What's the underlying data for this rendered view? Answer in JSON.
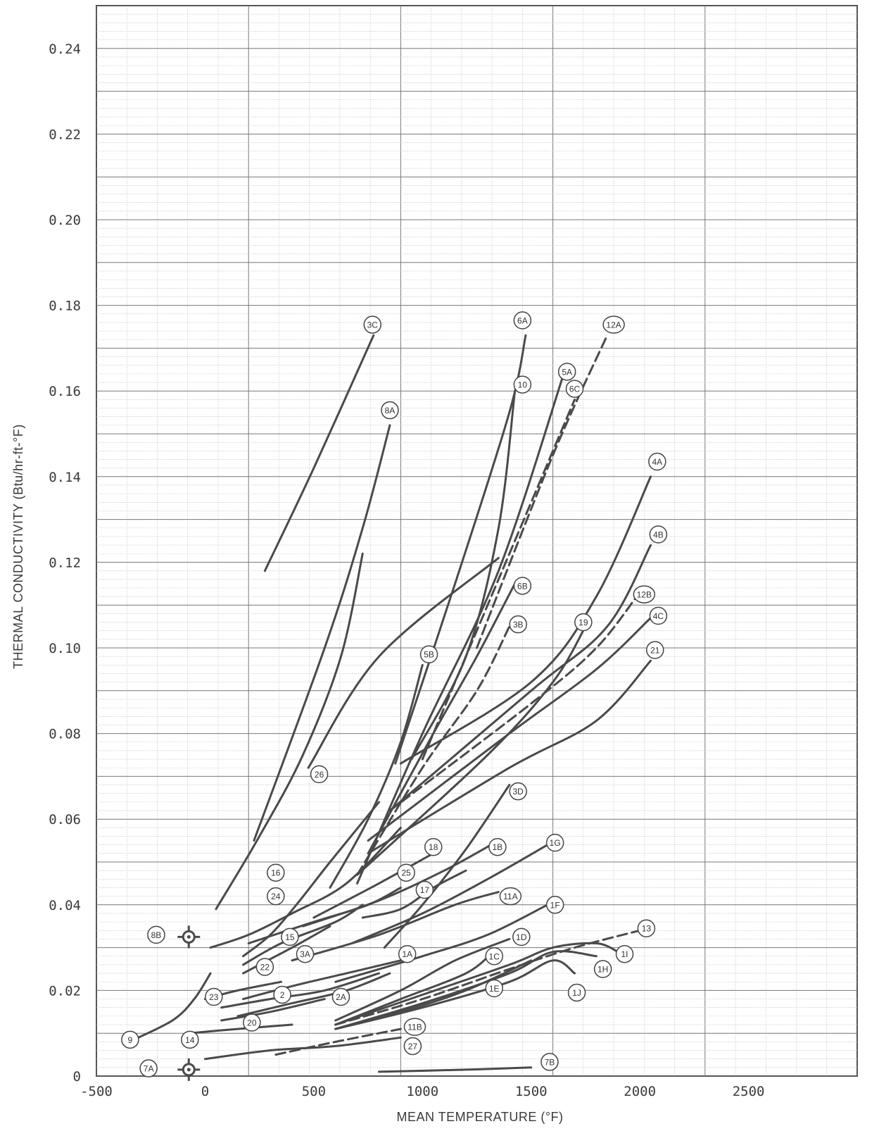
{
  "chart_data": {
    "type": "line",
    "title": "",
    "xlabel": "MEAN TEMPERATURE (°F)",
    "ylabel": "THERMAL CONDUCTIVITY (Btu/hr-ft-°F)",
    "xlim": [
      -500,
      3000
    ],
    "ylim": [
      0,
      0.25
    ],
    "x_ticks": [
      -500,
      0,
      500,
      1000,
      1500,
      2000,
      2500
    ],
    "x_tick_labels": [
      "-500",
      "0",
      "500",
      "1000",
      "1500",
      "2000",
      "2500"
    ],
    "y_ticks": [
      0,
      0.02,
      0.04,
      0.06,
      0.08,
      0.1,
      0.12,
      0.14,
      0.16,
      0.18,
      0.2,
      0.22,
      0.24
    ],
    "y_tick_labels": [
      "0",
      "0.02",
      "0.04",
      "0.06",
      "0.08",
      "0.10",
      "0.12",
      "0.14",
      "0.16",
      "0.18",
      "0.20",
      "0.22",
      "0.24"
    ],
    "grid": true,
    "line_color": "#4a4a4a",
    "series": [
      {
        "name": "3C",
        "points": [
          [
            275,
            0.118
          ],
          [
            500,
            0.142
          ],
          [
            775,
            0.173
          ]
        ],
        "label_at": [
          770,
          0.1755
        ]
      },
      {
        "name": "8A",
        "points": [
          [
            225,
            0.055
          ],
          [
            550,
            0.1
          ],
          [
            725,
            0.128
          ],
          [
            850,
            0.152
          ]
        ],
        "label_at": [
          850,
          0.1555
        ]
      },
      {
        "name": "26",
        "points": [
          [
            475,
            0.072
          ],
          [
            800,
            0.098
          ],
          [
            1350,
            0.121
          ]
        ],
        "label_at": [
          525,
          0.0705
        ]
      },
      {
        "name": "6A",
        "points": [
          [
            875,
            0.073
          ],
          [
            1150,
            0.115
          ],
          [
            1400,
            0.155
          ],
          [
            1475,
            0.173
          ]
        ],
        "label_at": [
          1460,
          0.1765
        ]
      },
      {
        "name": "10",
        "points": [
          [
            950,
            0.074
          ],
          [
            1200,
            0.098
          ],
          [
            1350,
            0.128
          ],
          [
            1425,
            0.16
          ]
        ],
        "label_at": [
          1460,
          0.1615
        ]
      },
      {
        "name": "5A",
        "points": [
          [
            700,
            0.045
          ],
          [
            1000,
            0.08
          ],
          [
            1350,
            0.118
          ],
          [
            1650,
            0.164
          ]
        ],
        "label_at": [
          1665,
          0.1645
        ]
      },
      {
        "name": "6C",
        "points": [
          [
            1000,
            0.074
          ],
          [
            1300,
            0.11
          ],
          [
            1550,
            0.14
          ],
          [
            1700,
            0.158
          ]
        ],
        "label_at": [
          1700,
          0.1605
        ],
        "dashed": true
      },
      {
        "name": "12A",
        "points": [
          [
            1250,
            0.1
          ],
          [
            1600,
            0.145
          ],
          [
            1850,
            0.173
          ]
        ],
        "label_at": [
          1880,
          0.1755
        ],
        "dashed": true
      },
      {
        "name": "4A",
        "points": [
          [
            900,
            0.073
          ],
          [
            1500,
            0.092
          ],
          [
            1800,
            0.112
          ],
          [
            2050,
            0.14
          ]
        ],
        "label_at": [
          2080,
          0.1435
        ]
      },
      {
        "name": "4B",
        "points": [
          [
            850,
            0.062
          ],
          [
            1500,
            0.09
          ],
          [
            1850,
            0.105
          ],
          [
            2050,
            0.124
          ]
        ],
        "label_at": [
          2085,
          0.1265
        ]
      },
      {
        "name": "12B",
        "points": [
          [
            850,
            0.062
          ],
          [
            1500,
            0.087
          ],
          [
            1800,
            0.1
          ],
          [
            2000,
            0.113
          ]
        ],
        "label_at": [
          2020,
          0.1125
        ],
        "dashed": true
      },
      {
        "name": "4C",
        "points": [
          [
            750,
            0.055
          ],
          [
            1400,
            0.08
          ],
          [
            1800,
            0.095
          ],
          [
            2050,
            0.107
          ]
        ],
        "label_at": [
          2085,
          0.1075
        ]
      },
      {
        "name": "21",
        "points": [
          [
            750,
            0.052
          ],
          [
            1400,
            0.072
          ],
          [
            1800,
            0.083
          ],
          [
            2050,
            0.097
          ]
        ],
        "label_at": [
          2070,
          0.0995
        ]
      },
      {
        "name": "19",
        "points": [
          [
            700,
            0.047
          ],
          [
            1300,
            0.075
          ],
          [
            1600,
            0.092
          ],
          [
            1750,
            0.105
          ]
        ],
        "label_at": [
          1740,
          0.106
        ]
      },
      {
        "name": "6B",
        "points": [
          [
            750,
            0.052
          ],
          [
            1050,
            0.08
          ],
          [
            1250,
            0.098
          ],
          [
            1425,
            0.115
          ]
        ],
        "label_at": [
          1460,
          0.1145
        ]
      },
      {
        "name": "3B",
        "points": [
          [
            700,
            0.047
          ],
          [
            1000,
            0.072
          ],
          [
            1250,
            0.09
          ],
          [
            1400,
            0.105
          ]
        ],
        "label_at": [
          1440,
          0.1055
        ],
        "dashed": true
      },
      {
        "name": "5B",
        "points": [
          [
            575,
            0.044
          ],
          [
            750,
            0.06
          ],
          [
            900,
            0.078
          ],
          [
            1000,
            0.096
          ]
        ],
        "label_at": [
          1030,
          0.0985
        ]
      },
      {
        "name": "3D",
        "points": [
          [
            825,
            0.03
          ],
          [
            1000,
            0.04
          ],
          [
            1200,
            0.053
          ],
          [
            1400,
            0.068
          ]
        ],
        "label_at": [
          1440,
          0.0665
        ]
      },
      {
        "name": "16",
        "points": [
          [
            50,
            0.039
          ],
          [
            250,
            0.056
          ],
          [
            450,
            0.075
          ],
          [
            625,
            0.098
          ],
          [
            725,
            0.122
          ]
        ],
        "label_at": [
          325,
          0.0475
        ]
      },
      {
        "name": "24",
        "points": [
          [
            25,
            0.03
          ],
          [
            200,
            0.033
          ],
          [
            400,
            0.038
          ],
          [
            650,
            0.045
          ],
          [
            900,
            0.058
          ]
        ],
        "label_at": [
          325,
          0.042
        ]
      },
      {
        "name": "18",
        "points": [
          [
            500,
            0.037
          ],
          [
            800,
            0.045
          ],
          [
            1050,
            0.052
          ]
        ],
        "label_at": [
          1050,
          0.0535
        ]
      },
      {
        "name": "25",
        "points": [
          [
            200,
            0.031
          ],
          [
            500,
            0.036
          ],
          [
            750,
            0.04
          ],
          [
            900,
            0.044
          ]
        ],
        "label_at": [
          925,
          0.0475
        ]
      },
      {
        "name": "1B",
        "points": [
          [
            450,
            0.035
          ],
          [
            800,
            0.041
          ],
          [
            1100,
            0.048
          ],
          [
            1350,
            0.055
          ]
        ],
        "label_at": [
          1345,
          0.0535
        ]
      },
      {
        "name": "17",
        "points": [
          [
            725,
            0.037
          ],
          [
            900,
            0.039
          ],
          [
            1050,
            0.044
          ],
          [
            1200,
            0.048
          ]
        ],
        "label_at": [
          1010,
          0.0435
        ]
      },
      {
        "name": "1G",
        "points": [
          [
            675,
            0.031
          ],
          [
            1000,
            0.038
          ],
          [
            1300,
            0.046
          ],
          [
            1575,
            0.054
          ]
        ],
        "label_at": [
          1610,
          0.0545
        ]
      },
      {
        "name": "11A",
        "points": [
          [
            400,
            0.027
          ],
          [
            800,
            0.033
          ],
          [
            1150,
            0.04
          ],
          [
            1350,
            0.043
          ]
        ],
        "label_at": [
          1405,
          0.042
        ]
      },
      {
        "name": "1F",
        "points": [
          [
            600,
            0.022
          ],
          [
            1000,
            0.028
          ],
          [
            1300,
            0.033
          ],
          [
            1575,
            0.04
          ]
        ],
        "label_at": [
          1610,
          0.04
        ]
      },
      {
        "name": "15",
        "points": [
          [
            175,
            0.026
          ],
          [
            350,
            0.031
          ],
          [
            600,
            0.036
          ],
          [
            725,
            0.04
          ]
        ],
        "label_at": [
          390,
          0.0325
        ]
      },
      {
        "name": "3A",
        "points": [
          [
            175,
            0.028
          ],
          [
            300,
            0.033
          ],
          [
            420,
            0.04
          ],
          [
            575,
            0.05
          ],
          [
            800,
            0.064
          ]
        ],
        "label_at": [
          460,
          0.0285
        ]
      },
      {
        "name": "22",
        "points": [
          [
            175,
            0.024
          ],
          [
            250,
            0.026
          ],
          [
            400,
            0.03
          ],
          [
            575,
            0.035
          ]
        ],
        "label_at": [
          275,
          0.0255
        ]
      },
      {
        "name": "1A",
        "points": [
          [
            175,
            0.018
          ],
          [
            400,
            0.021
          ],
          [
            650,
            0.024
          ],
          [
            900,
            0.027
          ]
        ],
        "label_at": [
          930,
          0.0285
        ]
      },
      {
        "name": "1D",
        "points": [
          [
            600,
            0.013
          ],
          [
            900,
            0.02
          ],
          [
            1150,
            0.027
          ],
          [
            1400,
            0.032
          ]
        ],
        "label_at": [
          1455,
          0.0325
        ]
      },
      {
        "name": "1C",
        "points": [
          [
            600,
            0.012
          ],
          [
            900,
            0.018
          ],
          [
            1200,
            0.024
          ],
          [
            1325,
            0.029
          ]
        ],
        "label_at": [
          1330,
          0.028
        ]
      },
      {
        "name": "1E",
        "points": [
          [
            600,
            0.011
          ],
          [
            900,
            0.015
          ],
          [
            1200,
            0.02
          ],
          [
            1500,
            0.027
          ]
        ],
        "label_at": [
          1330,
          0.0205
        ]
      },
      {
        "name": "13",
        "points": [
          [
            600,
            0.012
          ],
          [
            1000,
            0.018
          ],
          [
            1400,
            0.025
          ],
          [
            1700,
            0.03
          ],
          [
            2000,
            0.034
          ]
        ],
        "label_at": [
          2030,
          0.0345
        ],
        "dashed": true
      },
      {
        "name": "1I",
        "points": [
          [
            600,
            0.012
          ],
          [
            1000,
            0.019
          ],
          [
            1400,
            0.026
          ],
          [
            1600,
            0.03
          ],
          [
            1800,
            0.031
          ],
          [
            1900,
            0.029
          ]
        ],
        "label_at": [
          1930,
          0.0285
        ]
      },
      {
        "name": "1H",
        "points": [
          [
            600,
            0.011
          ],
          [
            1000,
            0.017
          ],
          [
            1400,
            0.024
          ],
          [
            1600,
            0.029
          ],
          [
            1800,
            0.028
          ]
        ],
        "label_at": [
          1830,
          0.025
        ]
      },
      {
        "name": "1J",
        "points": [
          [
            600,
            0.011
          ],
          [
            1000,
            0.016
          ],
          [
            1400,
            0.022
          ],
          [
            1600,
            0.027
          ],
          [
            1700,
            0.024
          ]
        ],
        "label_at": [
          1710,
          0.0195
        ]
      },
      {
        "name": "2",
        "points": [
          [
            75,
            0.016
          ],
          [
            300,
            0.018
          ],
          [
            550,
            0.02
          ],
          [
            800,
            0.024
          ]
        ],
        "label_at": [
          355,
          0.019
        ]
      },
      {
        "name": "2A",
        "points": [
          [
            150,
            0.014
          ],
          [
            400,
            0.017
          ],
          [
            650,
            0.02
          ],
          [
            850,
            0.024
          ]
        ],
        "label_at": [
          625,
          0.0185
        ]
      },
      {
        "name": "23",
        "points": [
          [
            0,
            0.018
          ],
          [
            150,
            0.02
          ],
          [
            350,
            0.022
          ]
        ],
        "label_at": [
          40,
          0.0185
        ]
      },
      {
        "name": "20",
        "points": [
          [
            75,
            0.013
          ],
          [
            300,
            0.015
          ],
          [
            550,
            0.018
          ]
        ],
        "label_at": [
          215,
          0.0125
        ]
      },
      {
        "name": "9",
        "points": [
          [
            -350,
            0.008
          ],
          [
            -150,
            0.013
          ],
          [
            -50,
            0.018
          ],
          [
            25,
            0.024
          ]
        ],
        "label_at": [
          -345,
          0.0085
        ]
      },
      {
        "name": "14",
        "points": [
          [
            -75,
            0.01
          ],
          [
            150,
            0.011
          ],
          [
            400,
            0.012
          ]
        ],
        "label_at": [
          -70,
          0.0085
        ]
      },
      {
        "name": "11B",
        "points": [
          [
            325,
            0.005
          ],
          [
            600,
            0.008
          ],
          [
            900,
            0.011
          ]
        ],
        "label_at": [
          965,
          0.0115
        ],
        "dashed": true
      },
      {
        "name": "27",
        "points": [
          [
            0,
            0.004
          ],
          [
            300,
            0.006
          ],
          [
            600,
            0.007
          ],
          [
            900,
            0.009
          ]
        ],
        "label_at": [
          955,
          0.007
        ]
      },
      {
        "name": "7B",
        "points": [
          [
            800,
            0.001
          ],
          [
            1200,
            0.0015
          ],
          [
            1500,
            0.002
          ]
        ],
        "label_at": [
          1585,
          0.0033
        ]
      },
      {
        "name": "7A",
        "points": [],
        "label_at": [
          -260,
          0.0018
        ],
        "marker_at": [
          -75,
          0.0015
        ]
      },
      {
        "name": "8B",
        "points": [],
        "label_at": [
          -225,
          0.033
        ],
        "marker_at": [
          -75,
          0.0325
        ]
      }
    ]
  }
}
